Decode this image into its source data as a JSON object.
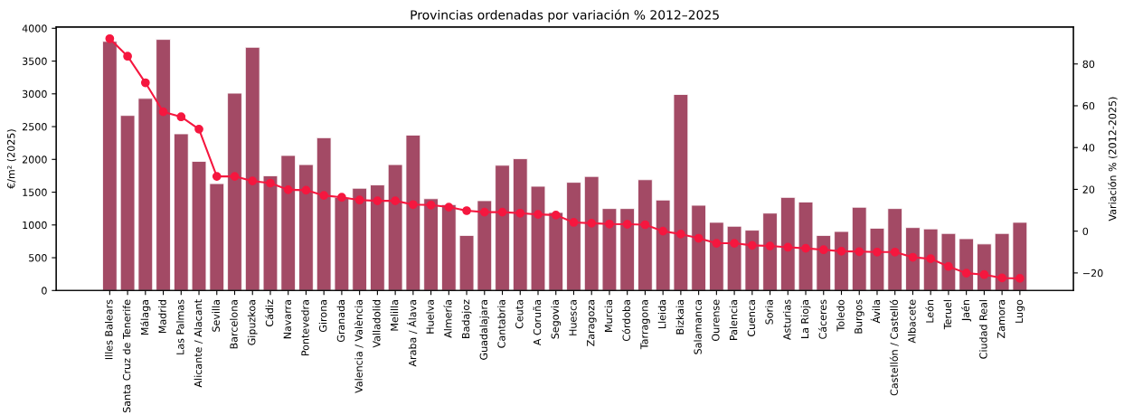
{
  "chart_data": {
    "type": "bar",
    "title": "Provincias ordenadas por variación % 2012–2025",
    "ylabel": "€/m² (2025)",
    "y2label": "Variación % (2012-2025)",
    "categories": [
      "Illes Balears",
      "Santa Cruz de Tenerife",
      "Málaga",
      "Madrid",
      "Las Palmas",
      "Alicante / Alacant",
      "Sevilla",
      "Barcelona",
      "Gipuzkoa",
      "Cádiz",
      "Navarra",
      "Pontevedra",
      "Girona",
      "Granada",
      "Valencia / València",
      "Valladolid",
      "Melilla",
      "Araba / Álava",
      "Huelva",
      "Almería",
      "Badajoz",
      "Guadalajara",
      "Cantabria",
      "Ceuta",
      "A Coruña",
      "Segovia",
      "Huesca",
      "Zaragoza",
      "Murcia",
      "Córdoba",
      "Tarragona",
      "Lleida",
      "Bizkaia",
      "Salamanca",
      "Ourense",
      "Palencia",
      "Cuenca",
      "Soria",
      "Asturias",
      "La Rioja",
      "Cáceres",
      "Toledo",
      "Burgos",
      "Ávila",
      "Castellón / Castelló",
      "Albacete",
      "León",
      "Teruel",
      "Jaén",
      "Ciudad Real",
      "Zamora",
      "Lugo"
    ],
    "series": [
      {
        "color": "#a34a65",
        "values": [
          3800,
          2670,
          2930,
          3830,
          2390,
          1970,
          1630,
          3010,
          3710,
          1750,
          2060,
          1920,
          2330,
          1420,
          1560,
          1610,
          1920,
          2370,
          1400,
          1310,
          840,
          1370,
          1910,
          2010,
          1590,
          1190,
          1650,
          1740,
          1250,
          1250,
          1690,
          1380,
          2990,
          1300,
          1040,
          980,
          920,
          1180,
          1420,
          1350,
          840,
          900,
          1270,
          950,
          1250,
          960,
          940,
          870,
          790,
          710,
          870,
          1040
        ]
      },
      {
        "type": "line",
        "axis": "y2",
        "color": "#f5173f",
        "marker": "circle",
        "line_style": "solid",
        "values": [
          92.1,
          83.7,
          71.0,
          57.1,
          54.7,
          48.8,
          26.2,
          26.2,
          24.0,
          23.0,
          19.8,
          19.6,
          17.1,
          16.2,
          14.9,
          14.5,
          14.5,
          12.7,
          12.5,
          11.5,
          9.8,
          9.1,
          9.1,
          8.6,
          8.0,
          7.7,
          4.2,
          3.8,
          3.4,
          3.3,
          3.1,
          0.0,
          -1.4,
          -3.4,
          -5.8,
          -5.8,
          -6.8,
          -7.1,
          -7.7,
          -8.2,
          -8.9,
          -9.6,
          -9.8,
          -10.0,
          -10.0,
          -12.5,
          -13.2,
          -16.9,
          -20.1,
          -20.8,
          -22.4,
          -22.6
        ]
      }
    ],
    "ylim": [
      0,
      4020
    ],
    "yticks": [
      0,
      500,
      1000,
      1500,
      2000,
      2500,
      3000,
      3500,
      4000
    ],
    "y2lim": [
      -28.4,
      97.7
    ],
    "y2ticks": [
      {
        "value": -20,
        "label": "−20"
      },
      0,
      20,
      40,
      60,
      80
    ],
    "grid": false,
    "legend": false
  }
}
